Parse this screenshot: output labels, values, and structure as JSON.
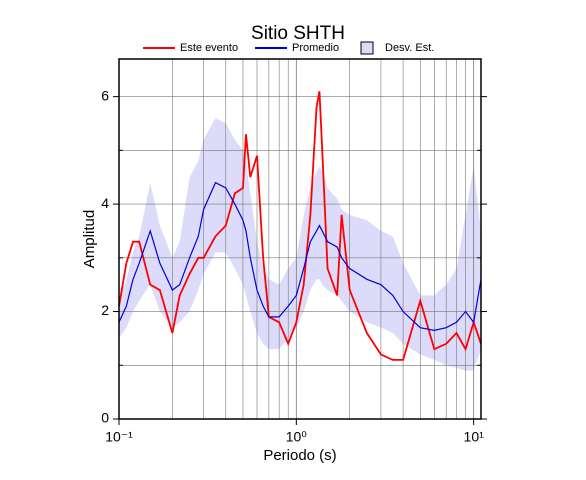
{
  "chart_data": {
    "type": "line",
    "title": "Sitio SHTH",
    "x_label": "Periodo (s)",
    "y_label": "Amplitud",
    "x_log": true,
    "grid": true,
    "x": [
      0.1,
      0.11,
      0.12,
      0.13,
      0.15,
      0.17,
      0.2,
      0.22,
      0.25,
      0.28,
      0.3,
      0.35,
      0.4,
      0.45,
      0.5,
      0.52,
      0.55,
      0.6,
      0.65,
      0.7,
      0.8,
      0.9,
      1.0,
      1.1,
      1.2,
      1.3,
      1.35,
      1.4,
      1.5,
      1.7,
      1.8,
      2.0,
      2.5,
      3,
      3.5,
      4,
      5,
      6,
      7,
      8,
      9,
      10,
      11
    ],
    "series": [
      {
        "name": "Este evento",
        "color": "#ff0000",
        "values": [
          2.1,
          2.9,
          3.3,
          3.3,
          2.5,
          2.4,
          1.6,
          2.3,
          2.7,
          3.0,
          3.0,
          3.4,
          3.6,
          4.2,
          4.3,
          5.3,
          4.5,
          4.9,
          3.0,
          1.9,
          1.8,
          1.4,
          1.8,
          2.5,
          3.8,
          5.8,
          6.1,
          5.0,
          2.8,
          2.3,
          3.8,
          2.4,
          1.6,
          1.2,
          1.1,
          1.1,
          2.2,
          1.3,
          1.4,
          1.6,
          1.3,
          1.8,
          1.4
        ]
      },
      {
        "name": "Promedio",
        "color": "#0000dd",
        "values": [
          1.8,
          2.1,
          2.6,
          2.9,
          3.5,
          2.9,
          2.4,
          2.5,
          3.0,
          3.4,
          3.9,
          4.4,
          4.3,
          4.0,
          3.7,
          3.5,
          3.0,
          2.4,
          2.1,
          1.9,
          1.9,
          2.1,
          2.3,
          2.8,
          3.3,
          3.5,
          3.6,
          3.5,
          3.3,
          3.2,
          3.0,
          2.8,
          2.6,
          2.5,
          2.3,
          2.0,
          1.7,
          1.65,
          1.7,
          1.8,
          2.0,
          1.8,
          2.6
        ]
      }
    ],
    "band": {
      "name": "Desv. Est.",
      "color": "#dcdcfa",
      "lower": [
        1.5,
        1.7,
        2.0,
        2.2,
        2.5,
        2.0,
        1.7,
        1.8,
        2.0,
        2.4,
        2.7,
        3.1,
        3.1,
        2.8,
        2.5,
        2.3,
        2.0,
        1.6,
        1.4,
        1.3,
        1.3,
        1.5,
        1.7,
        2.0,
        2.4,
        2.6,
        2.6,
        2.5,
        2.4,
        2.3,
        2.2,
        2.0,
        1.8,
        1.7,
        1.6,
        1.4,
        1.2,
        1.1,
        1.0,
        0.95,
        0.9,
        0.9,
        1.3
      ],
      "upper": [
        2.2,
        2.6,
        3.1,
        3.4,
        4.4,
        3.6,
        3.0,
        3.3,
        4.5,
        4.8,
        5.2,
        5.6,
        5.5,
        5.2,
        5.0,
        4.8,
        4.2,
        3.3,
        2.8,
        2.6,
        2.5,
        2.8,
        3.0,
        3.8,
        4.3,
        4.6,
        4.7,
        4.6,
        4.3,
        4.1,
        3.9,
        3.8,
        3.7,
        3.5,
        3.4,
        2.9,
        2.3,
        2.3,
        2.5,
        2.8,
        3.8,
        4.7,
        3.5
      ]
    },
    "xlim": [
      0.1,
      11
    ],
    "ylim": [
      0,
      6.7
    ],
    "xticks": [
      {
        "value": 0.1,
        "label": "10⁻¹"
      },
      {
        "value": 1,
        "label": "10⁰"
      },
      {
        "value": 10,
        "label": "10¹"
      }
    ],
    "x_minor_ticks": [
      0.2,
      0.3,
      0.4,
      0.5,
      0.6,
      0.7,
      0.8,
      0.9,
      2,
      3,
      4,
      5,
      6,
      7,
      8,
      9
    ],
    "yticks": [
      0,
      2,
      4,
      6
    ],
    "y_minor_ticks": [
      1,
      3,
      5
    ]
  }
}
